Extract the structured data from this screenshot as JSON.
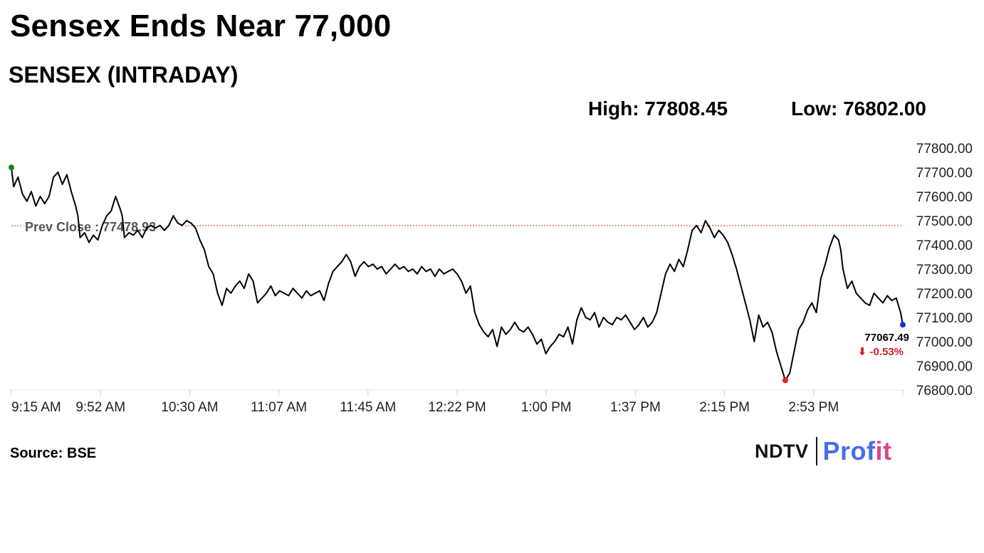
{
  "header": {
    "headline": "Sensex Ends Near 77,000",
    "subtitle": "SENSEX (INTRADAY)",
    "high_text": "High: 77808.45",
    "low_text": "Low: 76802.00"
  },
  "footer": {
    "source": "Source: BSE",
    "brand_ndtv": "NDTV",
    "brand_profit_a": "Prof",
    "brand_profit_b": "it"
  },
  "colors": {
    "line": "#000000",
    "prev_close_line": "#c0392b",
    "open_marker": "#0a8a0a",
    "low_marker": "#e02020",
    "last_marker": "#1a2fd6",
    "change_down": "#d61f1f",
    "brand_blue": "#4a6cf0",
    "brand_pink": "#e0438e"
  },
  "chart_data": {
    "type": "line",
    "title": "SENSEX (INTRADAY)",
    "high": 77808.45,
    "low": 76802.0,
    "prev_close": 77478.93,
    "prev_close_label": "Prev Close : 77478.93",
    "last_value": 77067.49,
    "last_label": "77067.49",
    "change_label": "⬇ -0.53%",
    "ylim": [
      76800,
      77800
    ],
    "y_ticks": [
      "77800.00",
      "77700.00",
      "77600.00",
      "77500.00",
      "77400.00",
      "77300.00",
      "77200.00",
      "77100.00",
      "77000.00",
      "76900.00",
      "76800.00"
    ],
    "x_ticks": [
      "9:15 AM",
      "9:52 AM",
      "10:30 AM",
      "11:07 AM",
      "11:45 AM",
      "12:22 PM",
      "1:00 PM",
      "1:37 PM",
      "2:15 PM",
      "2:53 PM"
    ],
    "xlim_minutes": [
      0,
      375
    ],
    "x_tick_step_minutes": 37.5,
    "grid": false,
    "series": [
      {
        "points": [
          [
            0,
            77720
          ],
          [
            1,
            77640
          ],
          [
            3,
            77680
          ],
          [
            5,
            77610
          ],
          [
            7,
            77580
          ],
          [
            9,
            77620
          ],
          [
            11,
            77560
          ],
          [
            13,
            77600
          ],
          [
            15,
            77570
          ],
          [
            17,
            77600
          ],
          [
            19,
            77680
          ],
          [
            21,
            77700
          ],
          [
            23,
            77650
          ],
          [
            25,
            77690
          ],
          [
            27,
            77620
          ],
          [
            29,
            77560
          ],
          [
            30,
            77520
          ],
          [
            31,
            77430
          ],
          [
            33,
            77450
          ],
          [
            35,
            77410
          ],
          [
            37,
            77440
          ],
          [
            39,
            77420
          ],
          [
            41,
            77480
          ],
          [
            43,
            77520
          ],
          [
            45,
            77540
          ],
          [
            47,
            77600
          ],
          [
            49,
            77550
          ],
          [
            50,
            77520
          ],
          [
            51,
            77430
          ],
          [
            53,
            77450
          ],
          [
            55,
            77440
          ],
          [
            57,
            77460
          ],
          [
            59,
            77430
          ],
          [
            61,
            77470
          ],
          [
            63,
            77480
          ],
          [
            65,
            77470
          ],
          [
            67,
            77480
          ],
          [
            69,
            77460
          ],
          [
            71,
            77480
          ],
          [
            73,
            77520
          ],
          [
            75,
            77490
          ],
          [
            77,
            77480
          ],
          [
            79,
            77500
          ],
          [
            81,
            77490
          ],
          [
            83,
            77470
          ],
          [
            85,
            77420
          ],
          [
            87,
            77380
          ],
          [
            89,
            77310
          ],
          [
            91,
            77280
          ],
          [
            93,
            77200
          ],
          [
            95,
            77150
          ],
          [
            97,
            77220
          ],
          [
            99,
            77200
          ],
          [
            101,
            77230
          ],
          [
            103,
            77250
          ],
          [
            105,
            77220
          ],
          [
            107,
            77280
          ],
          [
            109,
            77250
          ],
          [
            111,
            77160
          ],
          [
            113,
            77180
          ],
          [
            115,
            77200
          ],
          [
            117,
            77230
          ],
          [
            119,
            77190
          ],
          [
            121,
            77210
          ],
          [
            123,
            77200
          ],
          [
            125,
            77190
          ],
          [
            127,
            77220
          ],
          [
            129,
            77200
          ],
          [
            131,
            77180
          ],
          [
            133,
            77210
          ],
          [
            135,
            77190
          ],
          [
            137,
            77200
          ],
          [
            139,
            77210
          ],
          [
            141,
            77170
          ],
          [
            143,
            77240
          ],
          [
            145,
            77290
          ],
          [
            147,
            77310
          ],
          [
            149,
            77330
          ],
          [
            151,
            77360
          ],
          [
            153,
            77330
          ],
          [
            155,
            77270
          ],
          [
            157,
            77310
          ],
          [
            159,
            77330
          ],
          [
            161,
            77310
          ],
          [
            163,
            77320
          ],
          [
            165,
            77300
          ],
          [
            167,
            77310
          ],
          [
            169,
            77280
          ],
          [
            171,
            77300
          ],
          [
            173,
            77320
          ],
          [
            175,
            77300
          ],
          [
            177,
            77310
          ],
          [
            179,
            77290
          ],
          [
            181,
            77300
          ],
          [
            183,
            77280
          ],
          [
            185,
            77310
          ],
          [
            187,
            77290
          ],
          [
            189,
            77300
          ],
          [
            191,
            77270
          ],
          [
            193,
            77300
          ],
          [
            195,
            77280
          ],
          [
            197,
            77290
          ],
          [
            199,
            77300
          ],
          [
            201,
            77280
          ],
          [
            203,
            77250
          ],
          [
            205,
            77200
          ],
          [
            207,
            77230
          ],
          [
            209,
            77120
          ],
          [
            211,
            77070
          ],
          [
            213,
            77040
          ],
          [
            215,
            77020
          ],
          [
            217,
            77050
          ],
          [
            219,
            76980
          ],
          [
            221,
            77060
          ],
          [
            223,
            77030
          ],
          [
            225,
            77050
          ],
          [
            227,
            77080
          ],
          [
            229,
            77050
          ],
          [
            231,
            77040
          ],
          [
            233,
            77060
          ],
          [
            235,
            77030
          ],
          [
            237,
            76990
          ],
          [
            239,
            77010
          ],
          [
            241,
            76950
          ],
          [
            243,
            76980
          ],
          [
            245,
            77000
          ],
          [
            247,
            77030
          ],
          [
            249,
            77020
          ],
          [
            251,
            77060
          ],
          [
            253,
            76990
          ],
          [
            255,
            77090
          ],
          [
            257,
            77140
          ],
          [
            259,
            77100
          ],
          [
            261,
            77090
          ],
          [
            263,
            77120
          ],
          [
            265,
            77060
          ],
          [
            267,
            77100
          ],
          [
            269,
            77080
          ],
          [
            271,
            77070
          ],
          [
            273,
            77100
          ],
          [
            275,
            77090
          ],
          [
            277,
            77110
          ],
          [
            279,
            77080
          ],
          [
            281,
            77050
          ],
          [
            283,
            77070
          ],
          [
            285,
            77100
          ],
          [
            287,
            77060
          ],
          [
            289,
            77080
          ],
          [
            291,
            77120
          ],
          [
            293,
            77200
          ],
          [
            295,
            77280
          ],
          [
            297,
            77320
          ],
          [
            299,
            77290
          ],
          [
            301,
            77340
          ],
          [
            303,
            77310
          ],
          [
            305,
            77380
          ],
          [
            307,
            77460
          ],
          [
            309,
            77480
          ],
          [
            311,
            77450
          ],
          [
            313,
            77500
          ],
          [
            315,
            77470
          ],
          [
            317,
            77430
          ],
          [
            319,
            77460
          ],
          [
            321,
            77440
          ],
          [
            323,
            77410
          ],
          [
            325,
            77360
          ],
          [
            327,
            77300
          ],
          [
            329,
            77230
          ],
          [
            331,
            77160
          ],
          [
            333,
            77090
          ],
          [
            335,
            77000
          ],
          [
            337,
            77110
          ],
          [
            339,
            77060
          ],
          [
            341,
            77080
          ],
          [
            343,
            77040
          ],
          [
            345,
            76960
          ],
          [
            347,
            76900
          ],
          [
            349,
            76840
          ],
          [
            351,
            76870
          ],
          [
            353,
            76960
          ],
          [
            355,
            77050
          ],
          [
            357,
            77080
          ],
          [
            359,
            77130
          ],
          [
            361,
            77160
          ],
          [
            363,
            77120
          ],
          [
            365,
            77260
          ],
          [
            367,
            77320
          ],
          [
            369,
            77390
          ],
          [
            371,
            77440
          ],
          [
            373,
            77420
          ],
          [
            374,
            77380
          ],
          [
            375,
            77300
          ],
          [
            377,
            77220
          ],
          [
            379,
            77250
          ],
          [
            381,
            77200
          ],
          [
            383,
            77180
          ],
          [
            385,
            77160
          ],
          [
            387,
            77150
          ],
          [
            389,
            77200
          ],
          [
            391,
            77180
          ],
          [
            393,
            77160
          ],
          [
            395,
            77190
          ],
          [
            397,
            77170
          ],
          [
            399,
            77180
          ],
          [
            401,
            77120
          ],
          [
            402,
            77070
          ]
        ]
      }
    ]
  }
}
